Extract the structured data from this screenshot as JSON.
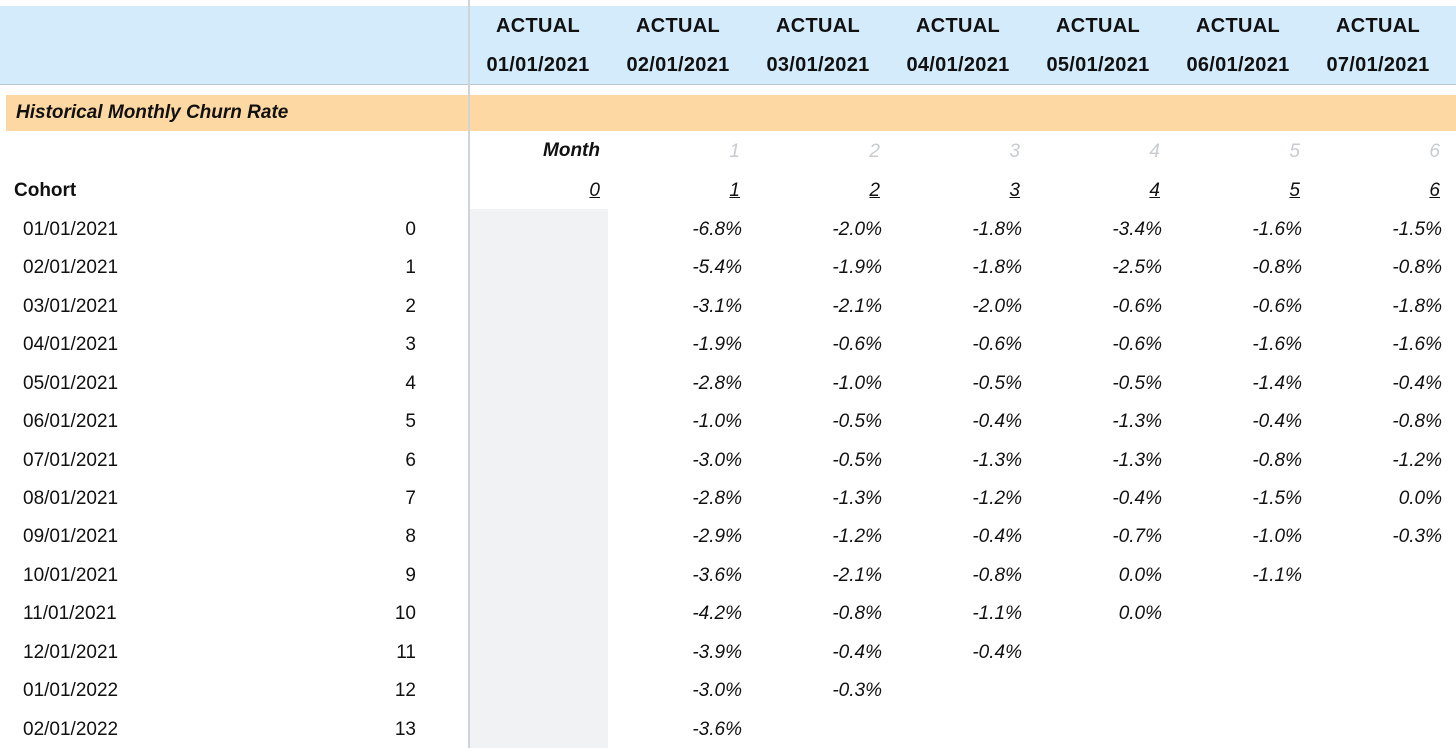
{
  "header": {
    "columns": [
      {
        "top": "ACTUAL",
        "date": "01/01/2021"
      },
      {
        "top": "ACTUAL",
        "date": "02/01/2021"
      },
      {
        "top": "ACTUAL",
        "date": "03/01/2021"
      },
      {
        "top": "ACTUAL",
        "date": "04/01/2021"
      },
      {
        "top": "ACTUAL",
        "date": "05/01/2021"
      },
      {
        "top": "ACTUAL",
        "date": "06/01/2021"
      },
      {
        "top": "ACTUAL",
        "date": "07/01/2021"
      }
    ]
  },
  "section": {
    "title": "Historical Monthly Churn Rate"
  },
  "month_label": "Month",
  "faint_months": [
    "1",
    "2",
    "3",
    "4",
    "5",
    "6"
  ],
  "cohort_label": "Cohort",
  "month_numbers": [
    "0",
    "1",
    "2",
    "3",
    "4",
    "5",
    "6"
  ],
  "rows": [
    {
      "date": "01/01/2021",
      "index": "0",
      "values": [
        "-6.8%",
        "-2.0%",
        "-1.8%",
        "-3.4%",
        "-1.6%",
        "-1.5%"
      ]
    },
    {
      "date": "02/01/2021",
      "index": "1",
      "values": [
        "-5.4%",
        "-1.9%",
        "-1.8%",
        "-2.5%",
        "-0.8%",
        "-0.8%"
      ]
    },
    {
      "date": "03/01/2021",
      "index": "2",
      "values": [
        "-3.1%",
        "-2.1%",
        "-2.0%",
        "-0.6%",
        "-0.6%",
        "-1.8%"
      ]
    },
    {
      "date": "04/01/2021",
      "index": "3",
      "values": [
        "-1.9%",
        "-0.6%",
        "-0.6%",
        "-0.6%",
        "-1.6%",
        "-1.6%"
      ]
    },
    {
      "date": "05/01/2021",
      "index": "4",
      "values": [
        "-2.8%",
        "-1.0%",
        "-0.5%",
        "-0.5%",
        "-1.4%",
        "-0.4%"
      ]
    },
    {
      "date": "06/01/2021",
      "index": "5",
      "values": [
        "-1.0%",
        "-0.5%",
        "-0.4%",
        "-1.3%",
        "-0.4%",
        "-0.8%"
      ]
    },
    {
      "date": "07/01/2021",
      "index": "6",
      "values": [
        "-3.0%",
        "-0.5%",
        "-1.3%",
        "-1.3%",
        "-0.8%",
        "-1.2%"
      ]
    },
    {
      "date": "08/01/2021",
      "index": "7",
      "values": [
        "-2.8%",
        "-1.3%",
        "-1.2%",
        "-0.4%",
        "-1.5%",
        "0.0%"
      ]
    },
    {
      "date": "09/01/2021",
      "index": "8",
      "values": [
        "-2.9%",
        "-1.2%",
        "-0.4%",
        "-0.7%",
        "-1.0%",
        "-0.3%"
      ]
    },
    {
      "date": "10/01/2021",
      "index": "9",
      "values": [
        "-3.6%",
        "-2.1%",
        "-0.8%",
        "0.0%",
        "-1.1%"
      ]
    },
    {
      "date": "11/01/2021",
      "index": "10",
      "values": [
        "-4.2%",
        "-0.8%",
        "-1.1%",
        "0.0%"
      ]
    },
    {
      "date": "12/01/2021",
      "index": "11",
      "values": [
        "-3.9%",
        "-0.4%",
        "-0.4%"
      ]
    },
    {
      "date": "01/01/2022",
      "index": "12",
      "values": [
        "-3.0%",
        "-0.3%"
      ]
    },
    {
      "date": "02/01/2022",
      "index": "13",
      "values": [
        "-3.6%"
      ]
    }
  ]
}
